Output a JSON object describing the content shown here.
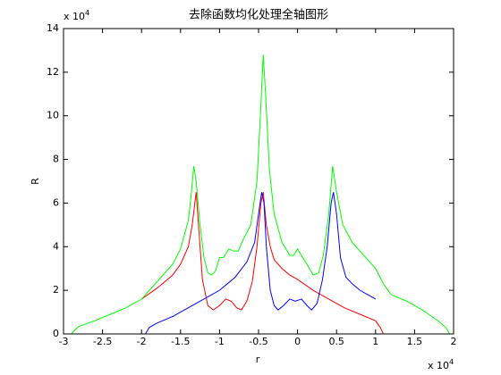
{
  "chart_data": {
    "type": "line",
    "title": "去除函数均化处理全轴图形",
    "x_label": "r",
    "y_label": "R",
    "x_multiplier": {
      "base": "x 10",
      "exponent": "4"
    },
    "y_multiplier": {
      "base": "x 10",
      "exponent": "4"
    },
    "xlim": [
      -3,
      2
    ],
    "xticks": [
      -3,
      -2.5,
      -2,
      -1.5,
      -1,
      -0.5,
      0,
      0.5,
      1,
      1.5,
      2
    ],
    "ylim": [
      0,
      14
    ],
    "yticks": [
      0,
      2,
      4,
      6,
      8,
      10,
      12,
      14
    ],
    "grid": false,
    "series": [
      {
        "color": "#ff0000",
        "x": [
          -2,
          -1.8,
          -1.6,
          -1.5,
          -1.4,
          -1.35,
          -1.3,
          -1.27,
          -1.22,
          -1.15,
          -1.08,
          -1.0,
          -0.92,
          -0.85,
          -0.78,
          -0.72,
          -0.65,
          -0.58,
          -0.52,
          -0.47,
          -0.44,
          -0.4,
          -0.35,
          -0.3,
          -0.2,
          -0.1,
          0,
          0.2,
          0.4,
          0.6,
          0.8,
          1.0,
          1.06,
          1.1
        ],
        "values": [
          1.6,
          2.1,
          2.7,
          3.2,
          4.0,
          5.0,
          6.5,
          5.0,
          2.5,
          1.3,
          1.1,
          1.3,
          1.6,
          1.5,
          1.2,
          1.1,
          1.5,
          2.4,
          4.0,
          6.0,
          6.5,
          5.0,
          4.0,
          3.4,
          3.0,
          2.7,
          2.5,
          2.0,
          1.6,
          1.2,
          0.9,
          0.6,
          0.3,
          0
        ]
      },
      {
        "color": "#0000ff",
        "x": [
          -1.95,
          -1.9,
          -1.8,
          -1.6,
          -1.4,
          -1.2,
          -1.0,
          -0.8,
          -0.65,
          -0.55,
          -0.5,
          -0.46,
          -0.43,
          -0.4,
          -0.35,
          -0.3,
          -0.25,
          -0.18,
          -0.1,
          -0.03,
          0.05,
          0.12,
          0.18,
          0.25,
          0.32,
          0.38,
          0.43,
          0.46,
          0.5,
          0.55,
          0.62,
          0.7,
          0.8,
          0.9,
          1.0
        ],
        "values": [
          0,
          0.3,
          0.5,
          0.8,
          1.2,
          1.6,
          2.0,
          2.6,
          3.3,
          4.2,
          5.5,
          6.5,
          6.0,
          4.0,
          2.0,
          1.3,
          1.1,
          1.3,
          1.6,
          1.5,
          1.6,
          1.3,
          1.1,
          1.4,
          2.5,
          4.0,
          6.0,
          6.5,
          5.5,
          3.5,
          2.6,
          2.3,
          2.0,
          1.8,
          1.6
        ]
      },
      {
        "color": "#00ff00",
        "x": [
          -2.9,
          -2.85,
          -2.8,
          -2.6,
          -2.4,
          -2.2,
          -2.0,
          -1.95,
          -1.8,
          -1.6,
          -1.5,
          -1.4,
          -1.36,
          -1.33,
          -1.3,
          -1.25,
          -1.2,
          -1.15,
          -1.1,
          -1.05,
          -1.0,
          -0.95,
          -0.88,
          -0.82,
          -0.76,
          -0.7,
          -0.6,
          -0.52,
          -0.47,
          -0.44,
          -0.41,
          -0.36,
          -0.3,
          -0.2,
          -0.1,
          -0.05,
          0,
          0.05,
          0.12,
          0.2,
          0.27,
          0.33,
          0.4,
          0.45,
          0.5,
          0.58,
          0.7,
          0.85,
          1.0,
          1.1,
          1.2,
          1.4,
          1.6,
          1.8,
          1.9,
          1.95
        ],
        "values": [
          0,
          0.2,
          0.35,
          0.6,
          0.9,
          1.2,
          1.6,
          1.8,
          2.4,
          3.2,
          3.9,
          5.2,
          6.5,
          7.7,
          7.0,
          5.0,
          3.5,
          2.8,
          2.7,
          2.9,
          3.5,
          3.5,
          3.9,
          3.8,
          3.8,
          4.3,
          5.0,
          7.0,
          10.5,
          12.8,
          11,
          7.5,
          5.5,
          4.2,
          3.6,
          3.6,
          3.9,
          3.6,
          3.2,
          2.7,
          2.8,
          3.6,
          5.5,
          7.7,
          6.5,
          5.0,
          4.2,
          3.6,
          3.0,
          2.3,
          1.8,
          1.5,
          1.1,
          0.6,
          0.3,
          0
        ]
      }
    ]
  }
}
